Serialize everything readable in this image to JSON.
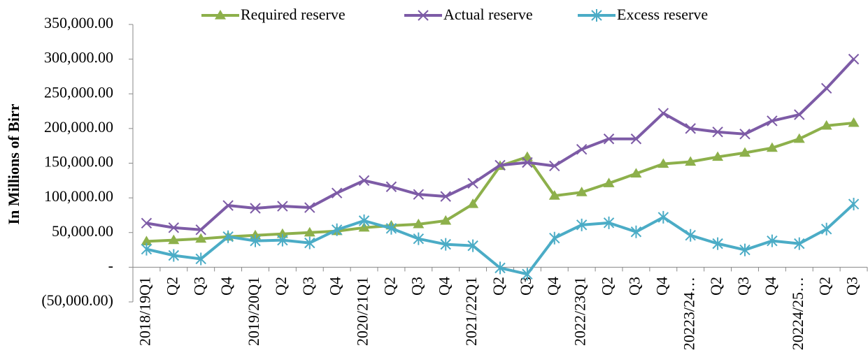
{
  "chart_data": {
    "type": "line",
    "y_axis_label": "In Millions of Birr",
    "categories": [
      "2018/19Q1",
      "Q2",
      "Q3",
      "Q4",
      "2019/20Q1",
      "Q2",
      "Q3",
      "Q4",
      "2020/21Q1",
      "Q2",
      "Q3",
      "Q4",
      "2021/22Q1",
      "Q2",
      "Q3",
      "Q4",
      "2022/23Q1",
      "Q2",
      "Q3",
      "Q4",
      "20223/24…",
      "Q2",
      "Q3",
      "Q4",
      "20224/25…",
      "Q2",
      "Q3"
    ],
    "series": [
      {
        "name": "Required reserve",
        "color": "#8db04b",
        "marker": "triangle",
        "values": [
          37300,
          39000,
          41000,
          44000,
          46000,
          48000,
          50000,
          52000,
          57000,
          60000,
          62000,
          67000,
          91000,
          146000,
          159000,
          103000,
          108000,
          121000,
          135000,
          149000,
          152000,
          159000,
          165000,
          172000,
          185000,
          204000,
          208000
        ]
      },
      {
        "name": "Actual reserve",
        "color": "#7d5ba6",
        "marker": "x",
        "values": [
          63500,
          57000,
          54000,
          89000,
          85000,
          88000,
          86000,
          107000,
          125000,
          116000,
          105000,
          102000,
          121000,
          147000,
          151000,
          146000,
          170000,
          185000,
          185000,
          222000,
          200000,
          195000,
          192000,
          211000,
          220000,
          258000,
          300000
        ]
      },
      {
        "name": "Excess reserve",
        "color": "#4bacc6",
        "marker": "asterisk",
        "values": [
          26000,
          17000,
          12000,
          44000,
          38000,
          39000,
          35000,
          54000,
          67000,
          56000,
          41000,
          33000,
          31000,
          -1000,
          -10000,
          42000,
          61000,
          64000,
          51000,
          72000,
          46000,
          34000,
          25000,
          38000,
          34000,
          55000,
          91000
        ]
      }
    ],
    "ylim": [
      -50000,
      350000
    ],
    "yticks": [
      {
        "value": -50000,
        "label": "(50,000.00)"
      },
      {
        "value": 0,
        "label": "-"
      },
      {
        "value": 50000,
        "label": "50,000.00"
      },
      {
        "value": 100000,
        "label": "100,000.00"
      },
      {
        "value": 150000,
        "label": "150,000.00"
      },
      {
        "value": 200000,
        "label": "200,000.00"
      },
      {
        "value": 250000,
        "label": "250,000.00"
      },
      {
        "value": 300000,
        "label": "300,000.00"
      },
      {
        "value": 350000,
        "label": "350,000.00"
      }
    ],
    "legend": "top"
  }
}
